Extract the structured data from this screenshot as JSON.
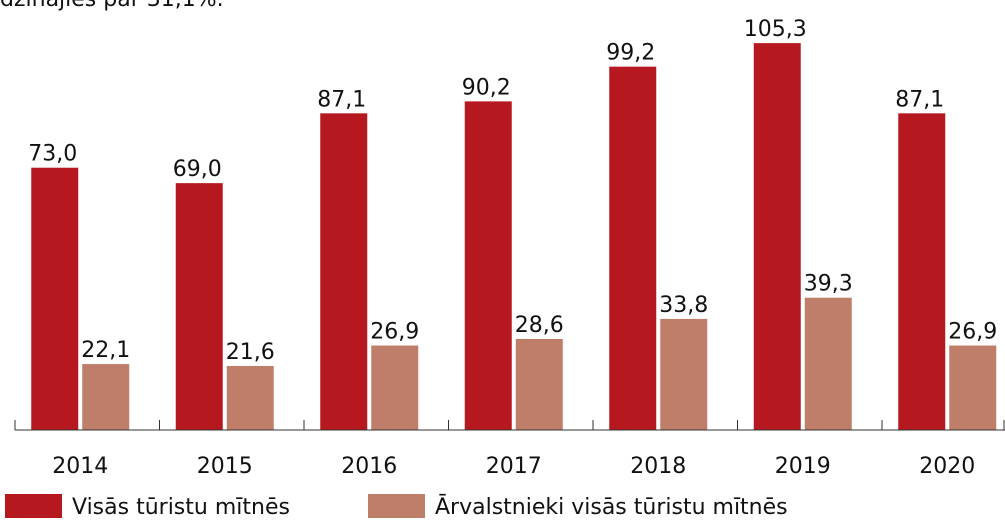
{
  "chart_data": {
    "type": "bar",
    "subtitle": "dzinājies par 31,1%.",
    "categories": [
      "2014",
      "2015",
      "2016",
      "2017",
      "2018",
      "2019",
      "2020"
    ],
    "series": [
      {
        "name": "Visās tūristu mītnēs",
        "color": "#b5191f",
        "values": [
          73.0,
          69.0,
          87.1,
          90.2,
          99.2,
          105.3,
          87.1
        ],
        "value_labels": [
          "73,0",
          "69,0",
          "87,1",
          "90,2",
          "99,2",
          "105,3",
          "87,1"
        ]
      },
      {
        "name": "Ārvalstnieki visās tūristu mītnēs",
        "color": "#bf7e6a",
        "values": [
          22.1,
          21.6,
          26.9,
          28.6,
          33.8,
          39.3,
          26.9
        ],
        "value_labels": [
          "22,1",
          "21,6",
          "26,9",
          "28,6",
          "33,8",
          "39,3",
          "26,9"
        ]
      }
    ],
    "ylim": [
      5,
      110
    ],
    "legend": "bottom-left"
  }
}
